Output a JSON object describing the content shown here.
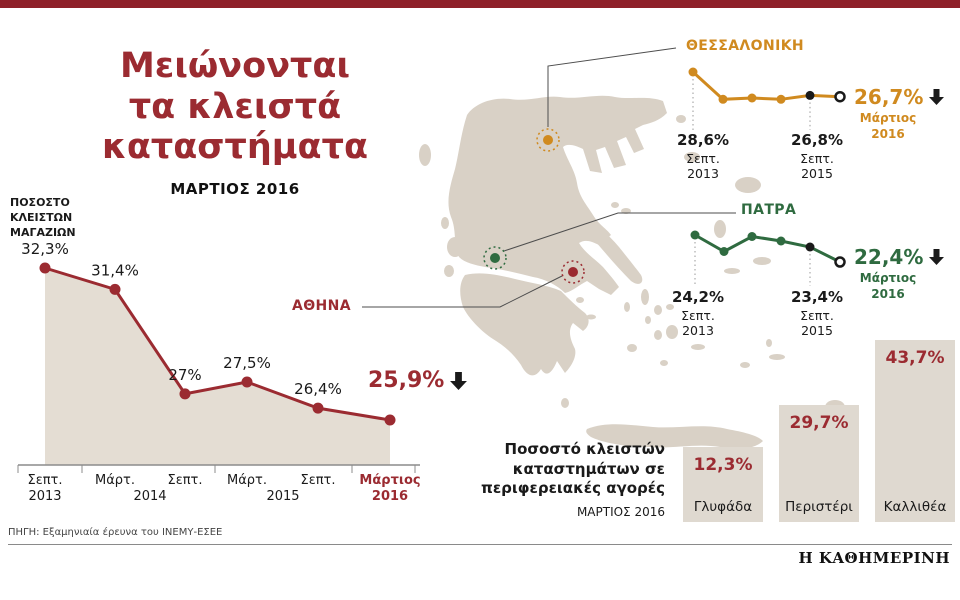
{
  "page": {
    "accent_color": "#9b2b31",
    "title_lines": [
      "Μειώνονται",
      "τα κλειστά",
      "καταστήματα"
    ],
    "subtitle": "ΜΑΡΤΙΟΣ 2016",
    "source": "ΠΗΓΗ: Εξαμηνιαία έρευνα του ΙΝΕΜΥ-ΕΣΕΕ",
    "brand": "Η ΚΑΘΗΜΕΡΙΝΗ"
  },
  "map": {
    "fill": "#d9d1c6",
    "markers": [
      {
        "name": "ΘΕΣΣΑΛΟΝΙΚΗ",
        "color": "#d08a1f"
      },
      {
        "name": "ΠΑΤΡΑ",
        "color": "#2f6b40"
      },
      {
        "name": "ΑΘΗΝΑ",
        "color": "#9b2b31"
      }
    ]
  },
  "chart_data": [
    {
      "type": "area",
      "name": "athens_closed_shops",
      "title": "ΠΟΣΟΣΤΟ ΚΛΕΙΣΤΩΝ ΜΑΓΑΖΙΩΝ",
      "title_lines": [
        "ΠΟΣΟΣΤΟ",
        "ΚΛΕΙΣΤΩΝ",
        "ΜΑΓΑΖΙΩΝ"
      ],
      "city_label": "ΑΘΗΝΑ",
      "color": "#9b2b31",
      "categories": [
        "Σεπτ. 2013",
        "Μάρτ. 2014",
        "Σεπτ. 2014",
        "Μάρτ. 2015",
        "Σεπτ. 2015",
        "Μάρτιος 2016"
      ],
      "values": [
        32.3,
        31.4,
        27,
        27.5,
        26.4,
        25.9
      ],
      "point_labels": [
        "32,3%",
        "31,4%",
        "27%",
        "27,5%",
        "26,4%",
        "25,9%"
      ],
      "highlight": {
        "label": "25,9%"
      },
      "axis_months": [
        "Σεπτ.",
        "Μάρτ.",
        "Σεπτ.",
        "Μάρτ.",
        "Σεπτ.",
        "Μάρτιος"
      ],
      "axis_years": [
        "2013",
        "2014",
        "2015",
        "2016"
      ],
      "ylim": [
        24,
        33
      ]
    },
    {
      "type": "line",
      "name": "thessaloniki",
      "city_label": "ΘΕΣΣΑΛΟΝΙΚΗ",
      "color": "#d08a1f",
      "categories": [
        "Σεπτ. 2013",
        "Μάρτ. 2014",
        "Σεπτ. 2014",
        "Μάρτ. 2015",
        "Σεπτ. 2015",
        "Μάρτιος 2016"
      ],
      "values": [
        28.6,
        26.5,
        26.6,
        26.5,
        26.8,
        26.7
      ],
      "annotations": [
        {
          "index": 0,
          "label": "28,6%",
          "sub_lines": [
            "Σεπτ.",
            "2013"
          ]
        },
        {
          "index": 4,
          "label": "26,8%",
          "sub_lines": [
            "Σεπτ.",
            "2015"
          ]
        }
      ],
      "highlight": {
        "label": "26,7%",
        "period_lines": [
          "Μάρτιος",
          "2016"
        ]
      }
    },
    {
      "type": "line",
      "name": "patra",
      "city_label": "ΠΑΤΡΑ",
      "color": "#2f6b40",
      "categories": [
        "Σεπτ. 2013",
        "Μάρτ. 2014",
        "Σεπτ. 2014",
        "Μάρτ. 2015",
        "Σεπτ. 2015",
        "Μάρτιος 2016"
      ],
      "values": [
        24.2,
        23.1,
        24.1,
        23.8,
        23.4,
        22.4
      ],
      "annotations": [
        {
          "index": 0,
          "label": "24,2%",
          "sub_lines": [
            "Σεπτ.",
            "2013"
          ]
        },
        {
          "index": 4,
          "label": "23,4%",
          "sub_lines": [
            "Σεπτ.",
            "2015"
          ]
        }
      ],
      "highlight": {
        "label": "22,4%",
        "period_lines": [
          "Μάρτιος",
          "2016"
        ]
      }
    },
    {
      "type": "bar",
      "name": "regional_markets",
      "title": "Ποσοστό κλειστών καταστημάτων σε περιφερειακές αγορές",
      "title_lines": [
        "Ποσοστό κλειστών",
        "καταστημάτων σε",
        "περιφερειακές αγορές"
      ],
      "subtitle": "ΜΑΡΤΙΟΣ 2016",
      "categories": [
        "Γλυφάδα",
        "Περιστέρι",
        "Καλλιθέα"
      ],
      "values": [
        12.3,
        29.7,
        43.7
      ],
      "value_labels": [
        "12,3%",
        "29,7%",
        "43,7%"
      ]
    }
  ]
}
